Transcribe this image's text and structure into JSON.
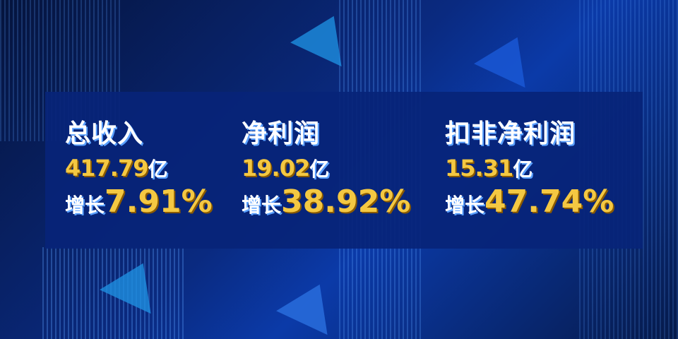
{
  "metrics": [
    {
      "title": "总收入",
      "value": "417.79",
      "unit": "亿",
      "growth_label": "增长",
      "growth": "7.91%"
    },
    {
      "title": "净利润",
      "value": "19.02",
      "unit": "亿",
      "growth_label": "增长",
      "growth": "38.92%"
    },
    {
      "title": "扣非净利润",
      "value": "15.31",
      "unit": "亿",
      "growth_label": "增长",
      "growth": "47.74%"
    }
  ],
  "colors": {
    "background": "#0a2a80",
    "panel": "#082478",
    "value": "#f4c842",
    "text": "#ffffff"
  }
}
